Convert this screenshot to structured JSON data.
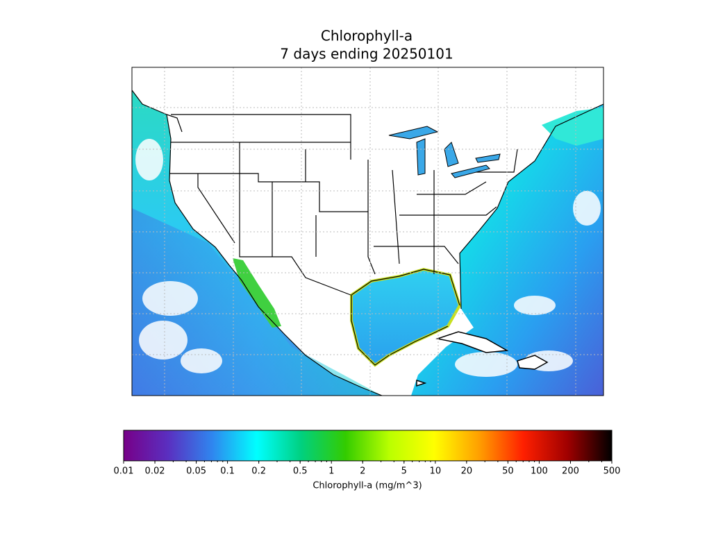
{
  "title": [
    "Chlorophyll-a",
    "7 days ending 20250101"
  ],
  "colorbar": {
    "label": "Chlorophyll-a (mg/m^3)",
    "scale": "log",
    "lim": [
      0.01,
      500
    ],
    "ticks": [
      0.01,
      0.02,
      0.05,
      0.1,
      0.2,
      0.5,
      1,
      2,
      5,
      10,
      20,
      50,
      100,
      200,
      500
    ],
    "colormap": [
      "#770088",
      "#5a2fc0",
      "#2f86ef",
      "#00ffff",
      "#00d080",
      "#33cc00",
      "#bbff00",
      "#ffff00",
      "#ffa000",
      "#ff2000",
      "#a00000",
      "#000000"
    ]
  }
}
